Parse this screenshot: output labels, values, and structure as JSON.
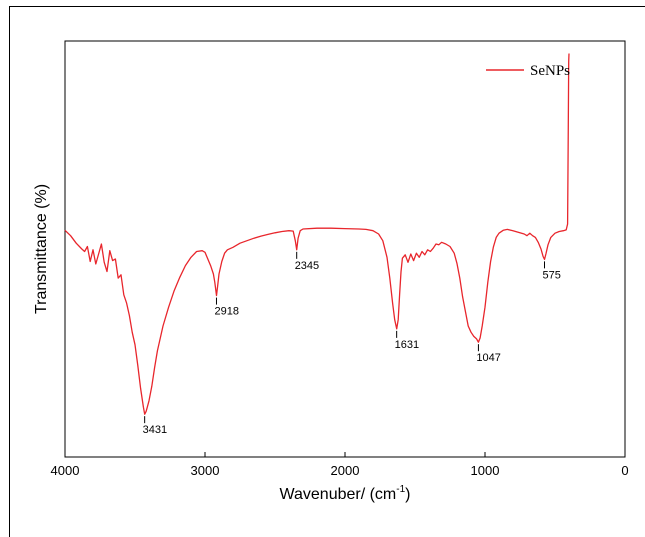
{
  "chart_data": {
    "type": "line",
    "xlabel": "Wavenuber/ (cm",
    "xlabel_sup": "-1",
    "xlabel_suffix": ")",
    "ylabel": "Transmittance (%)",
    "xlim": [
      4000,
      0
    ],
    "ylim": [
      0,
      100
    ],
    "x_ticks": [
      4000,
      3000,
      2000,
      1000,
      0
    ],
    "legend_position": "top-right",
    "colors": {
      "series": "#e8262c",
      "axis": "#000000"
    },
    "series": [
      {
        "name": "SeNPs",
        "points": [
          [
            4000,
            54.5
          ],
          [
            3960,
            53.2
          ],
          [
            3920,
            51.4
          ],
          [
            3880,
            50.0
          ],
          [
            3860,
            49.4
          ],
          [
            3840,
            50.6
          ],
          [
            3820,
            47.0
          ],
          [
            3800,
            49.8
          ],
          [
            3780,
            46.4
          ],
          [
            3760,
            48.8
          ],
          [
            3740,
            51.2
          ],
          [
            3720,
            46.8
          ],
          [
            3700,
            44.6
          ],
          [
            3680,
            49.6
          ],
          [
            3660,
            47.2
          ],
          [
            3640,
            47.6
          ],
          [
            3620,
            43.0
          ],
          [
            3600,
            43.8
          ],
          [
            3580,
            39.0
          ],
          [
            3560,
            37.0
          ],
          [
            3540,
            34.0
          ],
          [
            3520,
            30.0
          ],
          [
            3500,
            27.0
          ],
          [
            3480,
            22.0
          ],
          [
            3460,
            16.5
          ],
          [
            3440,
            12.0
          ],
          [
            3431,
            10.3
          ],
          [
            3420,
            11.0
          ],
          [
            3400,
            13.5
          ],
          [
            3380,
            17.0
          ],
          [
            3360,
            21.5
          ],
          [
            3340,
            25.5
          ],
          [
            3300,
            31.5
          ],
          [
            3260,
            36.0
          ],
          [
            3220,
            40.0
          ],
          [
            3180,
            43.2
          ],
          [
            3140,
            46.0
          ],
          [
            3100,
            48.0
          ],
          [
            3060,
            49.4
          ],
          [
            3020,
            49.6
          ],
          [
            3000,
            49.2
          ],
          [
            2960,
            46.0
          ],
          [
            2940,
            44.0
          ],
          [
            2930,
            42.0
          ],
          [
            2918,
            38.8
          ],
          [
            2910,
            41.0
          ],
          [
            2900,
            44.0
          ],
          [
            2880,
            47.0
          ],
          [
            2860,
            49.0
          ],
          [
            2840,
            49.8
          ],
          [
            2800,
            50.4
          ],
          [
            2750,
            51.4
          ],
          [
            2700,
            52.0
          ],
          [
            2650,
            52.6
          ],
          [
            2600,
            53.1
          ],
          [
            2550,
            53.5
          ],
          [
            2500,
            53.9
          ],
          [
            2450,
            54.2
          ],
          [
            2400,
            54.4
          ],
          [
            2370,
            54.3
          ],
          [
            2355,
            52.0
          ],
          [
            2345,
            49.8
          ],
          [
            2335,
            52.6
          ],
          [
            2320,
            54.4
          ],
          [
            2300,
            54.8
          ],
          [
            2200,
            55.0
          ],
          [
            2100,
            55.0
          ],
          [
            2000,
            54.9
          ],
          [
            1900,
            54.8
          ],
          [
            1850,
            54.7
          ],
          [
            1800,
            54.4
          ],
          [
            1760,
            53.6
          ],
          [
            1730,
            52.0
          ],
          [
            1700,
            48.0
          ],
          [
            1680,
            43.0
          ],
          [
            1660,
            37.0
          ],
          [
            1645,
            33.0
          ],
          [
            1631,
            30.8
          ],
          [
            1620,
            33.0
          ],
          [
            1610,
            39.0
          ],
          [
            1600,
            44.5
          ],
          [
            1590,
            47.8
          ],
          [
            1570,
            48.6
          ],
          [
            1550,
            46.8
          ],
          [
            1530,
            48.8
          ],
          [
            1510,
            47.2
          ],
          [
            1490,
            49.0
          ],
          [
            1470,
            48.0
          ],
          [
            1450,
            49.4
          ],
          [
            1430,
            48.6
          ],
          [
            1410,
            49.8
          ],
          [
            1390,
            49.4
          ],
          [
            1370,
            50.2
          ],
          [
            1350,
            51.2
          ],
          [
            1330,
            51.0
          ],
          [
            1310,
            51.6
          ],
          [
            1280,
            51.2
          ],
          [
            1250,
            50.6
          ],
          [
            1220,
            49.0
          ],
          [
            1200,
            46.5
          ],
          [
            1180,
            43.0
          ],
          [
            1160,
            38.5
          ],
          [
            1140,
            35.0
          ],
          [
            1120,
            31.5
          ],
          [
            1100,
            30.0
          ],
          [
            1080,
            29.0
          ],
          [
            1060,
            28.4
          ],
          [
            1047,
            27.6
          ],
          [
            1035,
            28.6
          ],
          [
            1020,
            31.5
          ],
          [
            1000,
            36.0
          ],
          [
            980,
            42.0
          ],
          [
            960,
            47.0
          ],
          [
            940,
            50.5
          ],
          [
            920,
            52.8
          ],
          [
            900,
            53.8
          ],
          [
            870,
            54.5
          ],
          [
            840,
            54.7
          ],
          [
            800,
            54.4
          ],
          [
            760,
            54.0
          ],
          [
            720,
            53.6
          ],
          [
            700,
            53.2
          ],
          [
            680,
            53.8
          ],
          [
            660,
            53.2
          ],
          [
            640,
            52.8
          ],
          [
            620,
            51.6
          ],
          [
            600,
            50.0
          ],
          [
            585,
            48.2
          ],
          [
            575,
            47.5
          ],
          [
            565,
            48.8
          ],
          [
            550,
            51.0
          ],
          [
            530,
            52.8
          ],
          [
            500,
            53.8
          ],
          [
            470,
            54.2
          ],
          [
            440,
            54.4
          ],
          [
            420,
            54.6
          ],
          [
            410,
            56.0
          ],
          [
            405,
            80.0
          ],
          [
            402,
            95.0
          ],
          [
            400,
            97.0
          ]
        ]
      }
    ],
    "annotations": [
      {
        "label": "3431",
        "x": 3431,
        "y": 10.3
      },
      {
        "label": "2918",
        "x": 2918,
        "y": 38.8
      },
      {
        "label": "2345",
        "x": 2345,
        "y": 49.8
      },
      {
        "label": "1631",
        "x": 1631,
        "y": 30.8
      },
      {
        "label": "1047",
        "x": 1047,
        "y": 27.6
      },
      {
        "label": "575",
        "x": 575,
        "y": 47.5
      }
    ]
  }
}
